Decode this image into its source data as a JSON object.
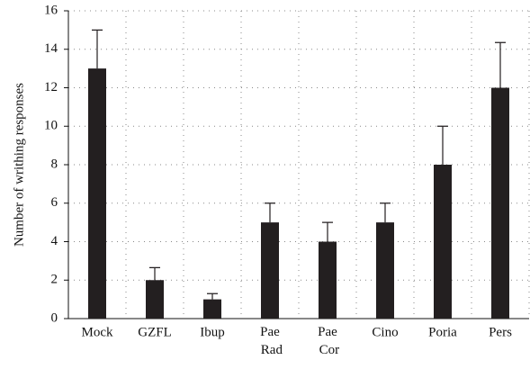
{
  "chart_data": {
    "type": "bar",
    "y_label": "Number of writhing responses",
    "categories": [
      "Mock",
      "GZFL",
      "Ibup",
      "Pae Rad",
      "Pae Cor",
      "Cino",
      "Poria",
      "Pers"
    ],
    "values": [
      13,
      2,
      1,
      5,
      4,
      5,
      8,
      12
    ],
    "errors": [
      2,
      0.65,
      0.3,
      1,
      1,
      1,
      2,
      2.35
    ],
    "color": "#231f20",
    "ylim": [
      0,
      16
    ],
    "yticks": [
      0,
      2,
      4,
      6,
      8,
      10,
      12,
      14,
      16
    ],
    "grid": true
  }
}
